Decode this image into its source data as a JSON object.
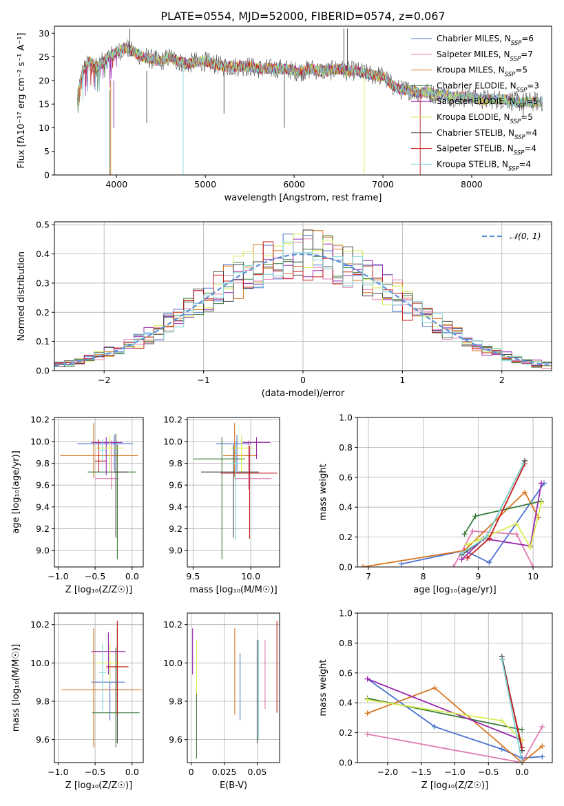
{
  "figure": {
    "title": "PLATE=0554, MJD=52000, FIBERID=0574, z=0.067"
  },
  "models": [
    {
      "name": "Chabrier MILES",
      "nssp": "6",
      "color": "#4a72d0"
    },
    {
      "name": "Salpeter MILES",
      "nssp": "7",
      "color": "#e07bb0"
    },
    {
      "name": "Kroupa MILES",
      "nssp": "5",
      "color": "#d97520"
    },
    {
      "name": "Chabrier ELODIE",
      "nssp": "3",
      "color": "#3a7a3a"
    },
    {
      "name": "Salpeter ELODIE",
      "nssp": "5",
      "color": "#9b27b0"
    },
    {
      "name": "Kroupa ELODIE",
      "nssp": "5",
      "color": "#d8ec50"
    },
    {
      "name": "Chabrier STELIB",
      "nssp": "4",
      "color": "#444444"
    },
    {
      "name": "Salpeter STELIB",
      "nssp": "4",
      "color": "#c41a1a"
    },
    {
      "name": "Kroupa STELIB",
      "nssp": "4",
      "color": "#7fd6d6"
    }
  ],
  "chart_data": [
    {
      "id": "spectrum",
      "type": "line",
      "xlabel": "wavelength [Angstrom, rest frame]",
      "ylabel": "Flux [fλ10⁻¹⁷ erg cm⁻² s⁻¹ A⁻¹]",
      "xlim": [
        3300,
        8900
      ],
      "ylim": [
        0,
        31.5
      ],
      "xticks": [
        4000,
        5000,
        6000,
        7000,
        8000
      ],
      "yticks": [
        0,
        5,
        10,
        15,
        20,
        25,
        30
      ],
      "grid": false,
      "legend": "top-right",
      "legend_entries": [
        "Chabrier MILES, N_SSP=6",
        "Salpeter MILES, N_SSP=7",
        "Kroupa MILES, N_SSP=5",
        "Chabrier ELODIE, N_SSP=3",
        "Salpeter ELODIE, N_SSP=5",
        "Kroupa ELODIE, N_SSP=5",
        "Chabrier STELIB, N_SSP=4",
        "Salpeter STELIB, N_SSP=4",
        "Kroupa STELIB, N_SSP=4"
      ],
      "x": [
        3560,
        3620,
        3700,
        3800,
        3900,
        4000,
        4100,
        4200,
        4300,
        4400,
        4500,
        4600,
        4700,
        4800,
        4900,
        5000,
        5100,
        5200,
        5300,
        5400,
        5500,
        5600,
        5700,
        5800,
        5900,
        6000,
        6100,
        6200,
        6300,
        6400,
        6500,
        6600,
        6700,
        6800,
        6900,
        7000,
        7100,
        7200,
        7300,
        7400,
        7500,
        7600,
        7700,
        7800,
        7900,
        8000,
        8100,
        8200,
        8300,
        8400,
        8500,
        8600,
        8700,
        8800
      ],
      "y": [
        17,
        22,
        24,
        23,
        25,
        26,
        27,
        26,
        25,
        24.5,
        24,
        25,
        24,
        23.5,
        24,
        24,
        23.5,
        23,
        23,
        23,
        23,
        22.5,
        22.5,
        22.5,
        22.5,
        22,
        22,
        22.5,
        22,
        22,
        22.5,
        22,
        22,
        21.5,
        21,
        21,
        19,
        18,
        18,
        17.5,
        17.5,
        17,
        17,
        16.5,
        16.5,
        16.5,
        16,
        16,
        16,
        16,
        15.5,
        15.5,
        15.5,
        15.5
      ]
    },
    {
      "id": "residuals",
      "type": "histogram",
      "xlabel": "(data-model)/error",
      "ylabel": "Normed distribution",
      "xlim": [
        -2.5,
        2.5
      ],
      "ylim": [
        0,
        0.51
      ],
      "xticks": [
        -2,
        -1,
        0,
        1,
        2
      ],
      "yticks": [
        0.0,
        0.1,
        0.2,
        0.3,
        0.4,
        0.5
      ],
      "grid": true,
      "legend": "top-right",
      "legend_entries": [
        "𝒩(0, 1)"
      ],
      "bin_width": 0.1,
      "bin_start": -2.5
    },
    {
      "id": "age-vs-Z",
      "type": "scatter",
      "xlabel": "Z [log₁₀(Z/Z☉)]",
      "ylabel": "age  [log₁₀(age/yr)]",
      "xlim": [
        -1.05,
        0.15
      ],
      "ylim": [
        8.85,
        10.22
      ],
      "xticks": [
        -1.0,
        -0.5,
        0.0
      ],
      "yticks": [
        9.0,
        9.2,
        9.4,
        9.6,
        9.8,
        10.0,
        10.2
      ],
      "grid": true,
      "points": [
        {
          "x": -0.24,
          "y": 9.98,
          "xerr": [
            0.5,
            0.25
          ],
          "yerr": [
            0.25,
            0.08
          ],
          "model": "Chabrier MILES"
        },
        {
          "x": -0.28,
          "y": 9.66,
          "xerr": [
            0.22,
            0.1
          ],
          "yerr": [
            0.1,
            0.35
          ],
          "model": "Salpeter MILES"
        },
        {
          "x": -0.52,
          "y": 9.87,
          "xerr": [
            0.45,
            0.6
          ],
          "yerr": [
            0.2,
            0.3
          ],
          "model": "Kroupa MILES"
        },
        {
          "x": -0.2,
          "y": 9.72,
          "xerr": [
            0.4,
            0.25
          ],
          "yerr": [
            0.8,
            0.25
          ],
          "model": "Chabrier ELODIE"
        },
        {
          "x": -0.35,
          "y": 9.99,
          "xerr": [
            0.2,
            0.22
          ],
          "yerr": [
            0.3,
            0.05
          ],
          "model": "Salpeter ELODIE"
        },
        {
          "x": -0.3,
          "y": 9.94,
          "xerr": [
            0.2,
            0.18
          ],
          "yerr": [
            0.22,
            0.12
          ],
          "model": "Kroupa ELODIE"
        },
        {
          "x": -0.22,
          "y": 9.72,
          "xerr": [
            0.03,
            0.15
          ],
          "yerr": [
            0.6,
            0.35
          ],
          "model": "Chabrier STELIB"
        },
        {
          "x": -0.45,
          "y": 9.82,
          "xerr": [
            0.05,
            0.1
          ],
          "yerr": [
            0.1,
            0.2
          ],
          "model": "Salpeter STELIB"
        },
        {
          "x": -0.4,
          "y": 9.92,
          "xerr": [
            0.05,
            0.05
          ],
          "yerr": [
            0.1,
            0.1
          ],
          "model": "Kroupa STELIB"
        }
      ]
    },
    {
      "id": "age-vs-mass",
      "type": "scatter",
      "xlabel": "mass [log₁₀(M/M☉)]",
      "ylabel": "",
      "xlim": [
        9.45,
        10.25
      ],
      "ylim": [
        8.85,
        10.22
      ],
      "xticks": [
        9.5,
        10.0
      ],
      "yticks": [
        9.0,
        9.2,
        9.4,
        9.6,
        9.8,
        10.0,
        10.2
      ],
      "grid": true,
      "points": [
        {
          "x": 9.88,
          "y": 9.98,
          "xerr": [
            0.18,
            0.12
          ],
          "yerr": [
            0.25,
            0.08
          ],
          "model": "Chabrier MILES"
        },
        {
          "x": 9.98,
          "y": 9.66,
          "xerr": [
            0.12,
            0.2
          ],
          "yerr": [
            0.1,
            0.35
          ],
          "model": "Salpeter MILES"
        },
        {
          "x": 9.86,
          "y": 9.87,
          "xerr": [
            0.1,
            0.2
          ],
          "yerr": [
            0.2,
            0.3
          ],
          "model": "Kroupa MILES"
        },
        {
          "x": 9.75,
          "y": 9.84,
          "xerr": [
            0.25,
            0.2
          ],
          "yerr": [
            0.92,
            0.2
          ],
          "model": "Chabrier ELODIE"
        },
        {
          "x": 10.05,
          "y": 9.99,
          "xerr": [
            0.12,
            0.12
          ],
          "yerr": [
            0.15,
            0.05
          ],
          "model": "Salpeter ELODIE"
        },
        {
          "x": 9.92,
          "y": 9.94,
          "xerr": [
            0.1,
            0.1
          ],
          "yerr": [
            0.22,
            0.12
          ],
          "model": "Kroupa ELODIE"
        },
        {
          "x": 9.85,
          "y": 9.72,
          "xerr": [
            0.28,
            0.22
          ],
          "yerr": [
            0.6,
            0.25
          ],
          "model": "Chabrier STELIB"
        },
        {
          "x": 9.99,
          "y": 9.71,
          "xerr": [
            0.25,
            0.24
          ],
          "yerr": [
            0.6,
            0.25
          ],
          "model": "Salpeter STELIB"
        },
        {
          "x": 9.87,
          "y": 9.8,
          "xerr": [
            0.05,
            0.05
          ],
          "yerr": [
            0.7,
            0.2
          ],
          "model": "Kroupa STELIB"
        }
      ]
    },
    {
      "id": "mass-weight-vs-age",
      "type": "line",
      "xlabel": "age  [log₁₀(age/yr)]",
      "ylabel": "mass weight",
      "xlim": [
        6.8,
        10.35
      ],
      "ylim": [
        0,
        1.0
      ],
      "xticks": [
        7,
        8,
        9,
        10
      ],
      "yticks": [
        0.0,
        0.2,
        0.4,
        0.6,
        0.8,
        1.0
      ],
      "grid": true,
      "series": [
        {
          "model": "Chabrier MILES",
          "x": [
            7.6,
            8.75,
            9.2,
            10.2
          ],
          "y": [
            0.02,
            0.11,
            0.03,
            0.56
          ]
        },
        {
          "model": "Salpeter MILES",
          "x": [
            8.55,
            8.9,
            9.7,
            10.0
          ],
          "y": [
            0.0,
            0.24,
            0.22,
            0.0
          ]
        },
        {
          "model": "Kroupa MILES",
          "x": [
            6.9,
            8.75,
            9.85,
            10.1
          ],
          "y": [
            0.0,
            0.11,
            0.5,
            0.33
          ]
        },
        {
          "model": "Chabrier ELODIE",
          "x": [
            8.75,
            8.95,
            10.15
          ],
          "y": [
            0.22,
            0.34,
            0.44
          ]
        },
        {
          "model": "Salpeter ELODIE",
          "x": [
            8.7,
            9.1,
            9.95,
            10.15
          ],
          "y": [
            0.05,
            0.19,
            0.14,
            0.56
          ]
        },
        {
          "model": "Kroupa ELODIE",
          "x": [
            8.8,
            9.0,
            9.7,
            9.95,
            10.15
          ],
          "y": [
            0.15,
            0.18,
            0.29,
            0.13,
            0.43
          ]
        },
        {
          "model": "Chabrier STELIB",
          "x": [
            8.7,
            9.15,
            9.85
          ],
          "y": [
            0.08,
            0.2,
            0.71
          ]
        },
        {
          "model": "Salpeter STELIB",
          "x": [
            8.8,
            9.2,
            9.85
          ],
          "y": [
            0.06,
            0.19,
            0.69
          ]
        },
        {
          "model": "Kroupa STELIB",
          "x": [
            8.7,
            9.15,
            9.82
          ],
          "y": [
            0.09,
            0.2,
            0.69
          ]
        }
      ]
    },
    {
      "id": "mass-vs-Z",
      "type": "scatter",
      "xlabel": "Z [log₁₀(Z/Z☉)]",
      "ylabel": "mass [log₁₀(M/M☉)]",
      "xlim": [
        -1.05,
        0.15
      ],
      "ylim": [
        9.48,
        10.26
      ],
      "xticks": [
        -1.0,
        -0.5,
        0.0
      ],
      "yticks": [
        9.6,
        9.8,
        10.0,
        10.2
      ],
      "grid": true,
      "points": [
        {
          "x": -0.3,
          "y": 9.9,
          "xerr": [
            0.25,
            0.2
          ],
          "yerr": [
            0.2,
            0.1
          ],
          "model": "Chabrier MILES"
        },
        {
          "x": -0.2,
          "y": 9.86,
          "xerr": [
            0.2,
            0.1
          ],
          "yerr": [
            0.12,
            0.12
          ],
          "model": "Salpeter MILES"
        },
        {
          "x": -0.52,
          "y": 9.86,
          "xerr": [
            0.43,
            0.65
          ],
          "yerr": [
            0.3,
            0.32
          ],
          "model": "Kroupa MILES"
        },
        {
          "x": -0.22,
          "y": 9.74,
          "xerr": [
            0.32,
            0.32
          ],
          "yerr": [
            0.18,
            0.34
          ],
          "model": "Chabrier ELODIE"
        },
        {
          "x": -0.32,
          "y": 10.06,
          "xerr": [
            0.23,
            0.23
          ],
          "yerr": [
            0.12,
            0.1
          ],
          "model": "Salpeter ELODIE"
        },
        {
          "x": -0.3,
          "y": 10.0,
          "xerr": [
            0.18,
            0.15
          ],
          "yerr": [
            0.1,
            0.1
          ],
          "model": "Kroupa ELODIE"
        },
        {
          "x": -0.2,
          "y": 9.98,
          "xerr": [
            0.05,
            0.05
          ],
          "yerr": [
            0.4,
            0.2
          ],
          "model": "Chabrier STELIB"
        },
        {
          "x": -0.2,
          "y": 9.98,
          "xerr": [
            0.15,
            0.15
          ],
          "yerr": [
            0.25,
            0.24
          ],
          "model": "Salpeter STELIB"
        },
        {
          "x": -0.4,
          "y": 9.95,
          "xerr": [
            0.05,
            0.05
          ],
          "yerr": [
            0.2,
            0.15
          ],
          "model": "Kroupa STELIB"
        }
      ]
    },
    {
      "id": "mass-vs-EBV",
      "type": "scatter",
      "xlabel": "E(B-V)",
      "ylabel": "",
      "xlim": [
        -0.003,
        0.067
      ],
      "ylim": [
        9.48,
        10.26
      ],
      "xticks": [
        0.0,
        0.025,
        0.05
      ],
      "yticks": [
        9.6,
        9.8,
        10.0,
        10.2
      ],
      "grid": true,
      "points": [
        {
          "x": 0.037,
          "y": 9.88,
          "xerr": [
            0,
            0
          ],
          "yerr": [
            0.18,
            0.17
          ],
          "model": "Chabrier MILES"
        },
        {
          "x": 0.056,
          "y": 9.92,
          "xerr": [
            0,
            0
          ],
          "yerr": [
            0.16,
            0.2
          ],
          "model": "Salpeter MILES"
        },
        {
          "x": 0.033,
          "y": 9.95,
          "xerr": [
            0,
            0
          ],
          "yerr": [
            0.22,
            0.23
          ],
          "model": "Kroupa MILES"
        },
        {
          "x": 0.004,
          "y": 9.68,
          "xerr": [
            0,
            0
          ],
          "yerr": [
            0.18,
            0.18
          ],
          "model": "Chabrier ELODIE"
        },
        {
          "x": 0.001,
          "y": 10.06,
          "xerr": [
            0,
            0
          ],
          "yerr": [
            0.12,
            0.12
          ],
          "model": "Salpeter ELODIE"
        },
        {
          "x": 0.004,
          "y": 9.98,
          "xerr": [
            0,
            0
          ],
          "yerr": [
            0.14,
            0.14
          ],
          "model": "Kroupa ELODIE"
        },
        {
          "x": 0.05,
          "y": 9.85,
          "xerr": [
            0,
            0
          ],
          "yerr": [
            0.27,
            0.27
          ],
          "model": "Chabrier STELIB"
        },
        {
          "x": 0.065,
          "y": 9.98,
          "xerr": [
            0,
            0
          ],
          "yerr": [
            0.24,
            0.24
          ],
          "model": "Salpeter STELIB"
        },
        {
          "x": 0.051,
          "y": 9.86,
          "xerr": [
            0,
            0
          ],
          "yerr": [
            0.26,
            0.26
          ],
          "model": "Kroupa STELIB"
        }
      ]
    },
    {
      "id": "mass-weight-vs-Z",
      "type": "line",
      "xlabel": "Z [log₁₀(Z/Z☉)]",
      "ylabel": "mass weight",
      "xlim": [
        -2.45,
        0.45
      ],
      "ylim": [
        0,
        1.0
      ],
      "xticks": [
        -2.0,
        -1.5,
        -1.0,
        -0.5,
        0.0
      ],
      "yticks": [
        0.0,
        0.2,
        0.4,
        0.6,
        0.8,
        1.0
      ],
      "grid": true,
      "series": [
        {
          "model": "Chabrier MILES",
          "x": [
            -2.3,
            -1.3,
            -0.3,
            0.0,
            0.3
          ],
          "y": [
            0.56,
            0.24,
            0.09,
            0.03,
            0.04
          ]
        },
        {
          "model": "Salpeter MILES",
          "x": [
            -2.3,
            0.0,
            0.3
          ],
          "y": [
            0.19,
            0.0,
            0.24
          ]
        },
        {
          "model": "Kroupa MILES",
          "x": [
            -2.3,
            -1.3,
            0.0,
            0.3
          ],
          "y": [
            0.33,
            0.5,
            0.0,
            0.11
          ]
        },
        {
          "model": "Chabrier ELODIE",
          "x": [
            -2.3,
            0.0
          ],
          "y": [
            0.43,
            0.22
          ]
        },
        {
          "model": "Salpeter ELODIE",
          "x": [
            -2.3,
            0.0
          ],
          "y": [
            0.56,
            0.15
          ]
        },
        {
          "model": "Kroupa ELODIE",
          "x": [
            -2.3,
            -0.3,
            0.0
          ],
          "y": [
            0.42,
            0.28,
            0.15
          ]
        },
        {
          "model": "Chabrier STELIB",
          "x": [
            -0.3,
            0.0
          ],
          "y": [
            0.71,
            0.08
          ]
        },
        {
          "model": "Salpeter STELIB",
          "x": [
            -0.3,
            0.0
          ],
          "y": [
            0.69,
            0.1
          ]
        },
        {
          "model": "Kroupa STELIB",
          "x": [
            -0.3,
            0.0
          ],
          "y": [
            0.69,
            0.0
          ]
        }
      ]
    }
  ]
}
